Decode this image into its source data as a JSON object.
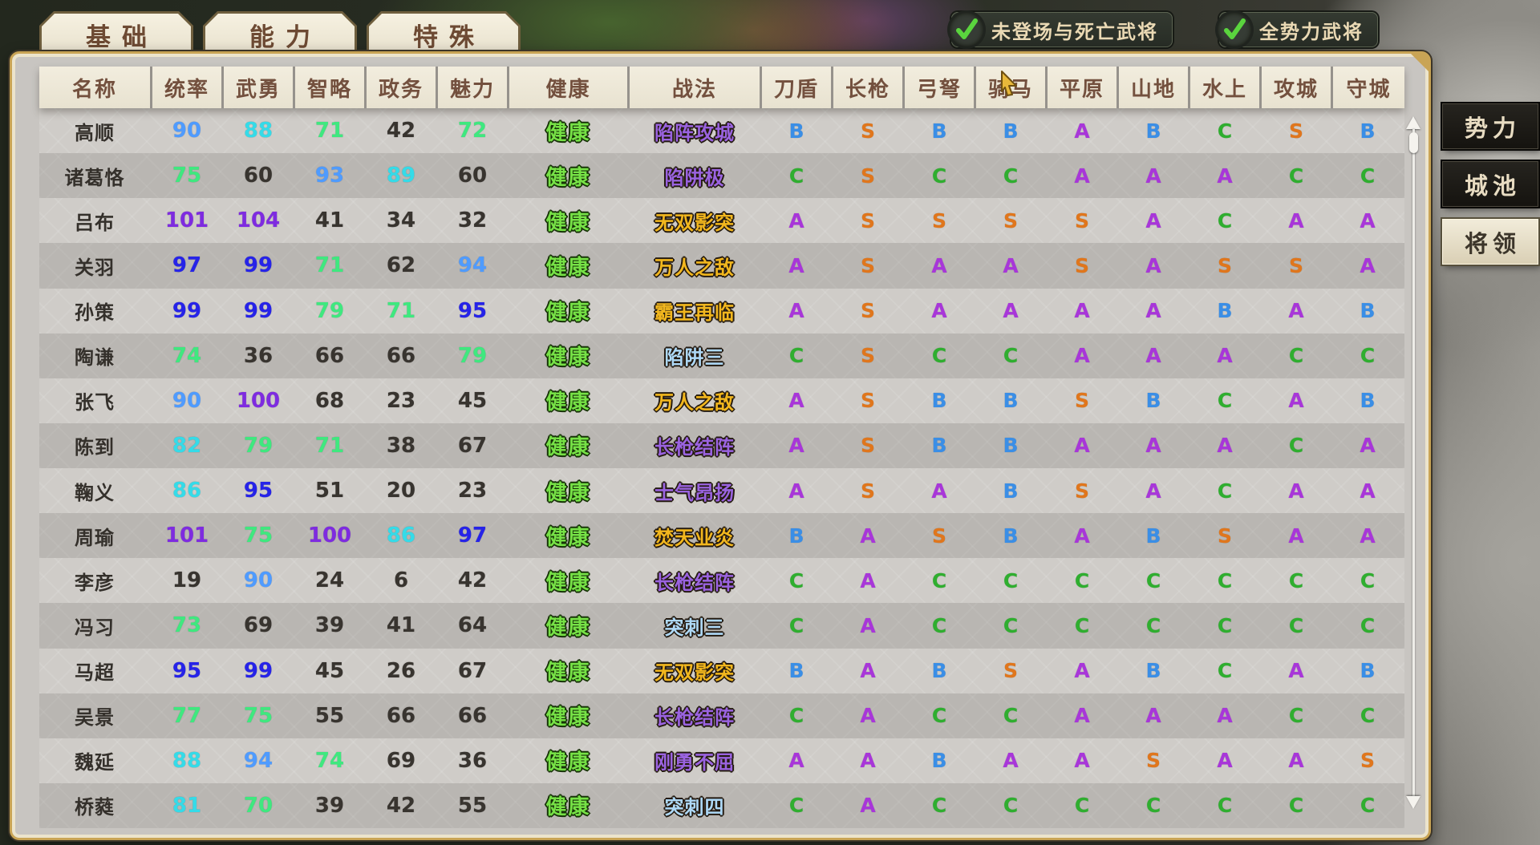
{
  "tabs": {
    "items": [
      {
        "label": "基础"
      },
      {
        "label": "能力"
      },
      {
        "label": "特殊"
      }
    ]
  },
  "filters": {
    "items": [
      {
        "label": "未登场与死亡武将",
        "checked": true
      },
      {
        "label": "全势力武将",
        "checked": true
      }
    ]
  },
  "side_nav": {
    "items": [
      {
        "label": "势力",
        "active": false
      },
      {
        "label": "城池",
        "active": false
      },
      {
        "label": "将领",
        "active": true
      }
    ]
  },
  "table": {
    "columns": [
      "名称",
      "统率",
      "武勇",
      "智略",
      "政务",
      "魅力",
      "健康",
      "战法",
      "刀盾",
      "长枪",
      "弓弩",
      "骑马",
      "平原",
      "山地",
      "水上",
      "攻城",
      "守城"
    ],
    "rows": [
      {
        "name": "高顺",
        "stats": [
          90,
          88,
          71,
          42,
          72
        ],
        "health": "健康",
        "tactic": "陷阵攻城",
        "tactic_color": "purple",
        "grades": [
          "B",
          "S",
          "B",
          "B",
          "A",
          "B",
          "C",
          "S",
          "B"
        ]
      },
      {
        "name": "诸葛恪",
        "stats": [
          75,
          60,
          93,
          89,
          60
        ],
        "health": "健康",
        "tactic": "陷阱极",
        "tactic_color": "purple",
        "grades": [
          "C",
          "S",
          "C",
          "C",
          "A",
          "A",
          "A",
          "C",
          "C"
        ]
      },
      {
        "name": "吕布",
        "stats": [
          101,
          104,
          41,
          34,
          32
        ],
        "health": "健康",
        "tactic": "无双影突",
        "tactic_color": "gold",
        "grades": [
          "A",
          "S",
          "S",
          "S",
          "S",
          "A",
          "C",
          "A",
          "A"
        ]
      },
      {
        "name": "关羽",
        "stats": [
          97,
          99,
          71,
          62,
          94
        ],
        "health": "健康",
        "tactic": "万人之敌",
        "tactic_color": "gold",
        "grades": [
          "A",
          "S",
          "A",
          "A",
          "S",
          "A",
          "S",
          "S",
          "A"
        ]
      },
      {
        "name": "孙策",
        "stats": [
          99,
          99,
          79,
          71,
          95
        ],
        "health": "健康",
        "tactic": "霸王再临",
        "tactic_color": "gold",
        "grades": [
          "A",
          "S",
          "A",
          "A",
          "A",
          "A",
          "B",
          "A",
          "B"
        ]
      },
      {
        "name": "陶谦",
        "stats": [
          74,
          36,
          66,
          66,
          79
        ],
        "health": "健康",
        "tactic": "陷阱三",
        "tactic_color": "lightblue",
        "grades": [
          "C",
          "S",
          "C",
          "C",
          "A",
          "A",
          "A",
          "C",
          "C"
        ]
      },
      {
        "name": "张飞",
        "stats": [
          90,
          100,
          68,
          23,
          45
        ],
        "health": "健康",
        "tactic": "万人之敌",
        "tactic_color": "gold",
        "grades": [
          "A",
          "S",
          "B",
          "B",
          "S",
          "B",
          "C",
          "A",
          "B"
        ]
      },
      {
        "name": "陈到",
        "stats": [
          82,
          79,
          71,
          38,
          67
        ],
        "health": "健康",
        "tactic": "长枪结阵",
        "tactic_color": "purple",
        "grades": [
          "A",
          "S",
          "B",
          "B",
          "A",
          "A",
          "A",
          "C",
          "A"
        ]
      },
      {
        "name": "鞠义",
        "stats": [
          86,
          95,
          51,
          20,
          23
        ],
        "health": "健康",
        "tactic": "士气昂扬",
        "tactic_color": "purple",
        "grades": [
          "A",
          "S",
          "A",
          "B",
          "S",
          "A",
          "C",
          "A",
          "A"
        ]
      },
      {
        "name": "周瑜",
        "stats": [
          101,
          75,
          100,
          86,
          97
        ],
        "health": "健康",
        "tactic": "焚天业炎",
        "tactic_color": "gold",
        "grades": [
          "B",
          "A",
          "S",
          "B",
          "A",
          "B",
          "S",
          "A",
          "A"
        ]
      },
      {
        "name": "李彦",
        "stats": [
          19,
          90,
          24,
          6,
          42
        ],
        "health": "健康",
        "tactic": "长枪结阵",
        "tactic_color": "purple",
        "grades": [
          "C",
          "A",
          "C",
          "C",
          "C",
          "C",
          "C",
          "C",
          "C"
        ]
      },
      {
        "name": "冯习",
        "stats": [
          73,
          69,
          39,
          41,
          64
        ],
        "health": "健康",
        "tactic": "突刺三",
        "tactic_color": "lightblue",
        "grades": [
          "C",
          "A",
          "C",
          "C",
          "C",
          "C",
          "C",
          "C",
          "C"
        ]
      },
      {
        "name": "马超",
        "stats": [
          95,
          99,
          45,
          26,
          67
        ],
        "health": "健康",
        "tactic": "无双影突",
        "tactic_color": "gold",
        "grades": [
          "B",
          "A",
          "B",
          "S",
          "A",
          "B",
          "C",
          "A",
          "B"
        ]
      },
      {
        "name": "吴景",
        "stats": [
          77,
          75,
          55,
          66,
          66
        ],
        "health": "健康",
        "tactic": "长枪结阵",
        "tactic_color": "purple",
        "grades": [
          "C",
          "A",
          "C",
          "C",
          "A",
          "A",
          "A",
          "C",
          "C"
        ]
      },
      {
        "name": "魏延",
        "stats": [
          88,
          94,
          74,
          69,
          36
        ],
        "health": "健康",
        "tactic": "刚勇不屈",
        "tactic_color": "purple",
        "grades": [
          "A",
          "A",
          "B",
          "A",
          "A",
          "S",
          "A",
          "A",
          "S"
        ]
      },
      {
        "name": "桥蕤",
        "stats": [
          81,
          70,
          39,
          42,
          55
        ],
        "health": "健康",
        "tactic": "突刺四",
        "tactic_color": "lightblue",
        "grades": [
          "C",
          "A",
          "C",
          "C",
          "C",
          "C",
          "C",
          "C",
          "C"
        ]
      }
    ]
  },
  "colors": {
    "grade": {
      "S": "#e0761c",
      "A": "#a836d9",
      "B": "#3a8ee6",
      "C": "#2fae2f"
    },
    "stat_tiers": [
      {
        "min": 100,
        "color": "#7e2be0"
      },
      {
        "min": 95,
        "color": "#2623e8"
      },
      {
        "min": 90,
        "color": "#4f9bff"
      },
      {
        "min": 80,
        "color": "#35dbe8"
      },
      {
        "min": 70,
        "color": "#3fe87f"
      },
      {
        "min": 0,
        "color": "#38342f"
      }
    ],
    "tactic": {
      "purple": "#9a63e0",
      "gold": "#f2b71e",
      "lightblue": "#aed9f7"
    },
    "health": "#76e146",
    "check": "#5ad43e"
  }
}
